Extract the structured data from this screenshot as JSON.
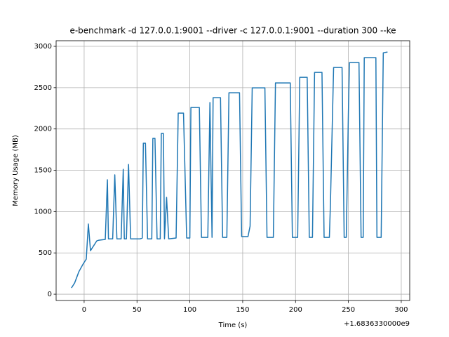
{
  "chart_data": {
    "type": "line",
    "title": "e-benchmark -d 127.0.0.1:9001 --driver -c 127.0.0.1:9001 --duration 300 --ke",
    "x_label": "Time (s)",
    "y_label": "Memory Usage (MB)",
    "x_offset_label": "+1.6836330000e9",
    "color": "#1f77b4",
    "grid": true,
    "xlim": [
      -26.5,
      308
    ],
    "ylim": [
      -76,
      3068
    ],
    "xticks": [
      0,
      50,
      100,
      150,
      200,
      250,
      300
    ],
    "yticks": [
      0,
      500,
      1000,
      1500,
      2000,
      2500,
      3000
    ],
    "x": [
      -12,
      -9,
      -5,
      -1,
      2,
      4,
      6,
      12,
      14,
      20,
      22,
      23,
      27,
      29,
      31,
      35,
      37,
      38,
      40,
      42,
      44,
      53,
      55,
      56,
      58,
      60,
      64,
      65,
      67,
      69,
      72,
      73,
      75,
      76,
      78,
      80,
      87,
      89,
      94,
      97,
      100,
      101,
      109,
      111,
      117,
      119,
      121,
      122,
      129,
      131,
      135,
      137,
      147,
      149,
      155,
      157,
      159,
      171,
      173,
      179,
      181,
      195,
      197,
      202,
      204,
      211,
      213,
      216,
      218,
      225,
      227,
      232,
      233,
      236,
      244,
      246,
      248,
      250,
      251,
      260,
      262,
      264,
      265,
      276,
      277,
      281,
      283,
      287
    ],
    "values": [
      76,
      136,
      272,
      365,
      425,
      850,
      527,
      646,
      654,
      663,
      1385,
      670,
      670,
      1445,
      670,
      670,
      1512,
      670,
      670,
      1570,
      670,
      670,
      680,
      1827,
      1827,
      670,
      670,
      1886,
      1886,
      670,
      670,
      1945,
      1945,
      670,
      1172,
      670,
      680,
      2192,
      2192,
      680,
      680,
      2260,
      2260,
      688,
      688,
      2320,
      688,
      2379,
      2379,
      688,
      688,
      2438,
      2438,
      697,
      697,
      824,
      2498,
      2498,
      688,
      688,
      2557,
      2557,
      688,
      688,
      2625,
      2625,
      688,
      688,
      2685,
      2685,
      688,
      688,
      1096,
      2744,
      2744,
      688,
      688,
      2200,
      2804,
      2804,
      688,
      688,
      2863,
      2863,
      688,
      688,
      2922,
      2931
    ]
  }
}
